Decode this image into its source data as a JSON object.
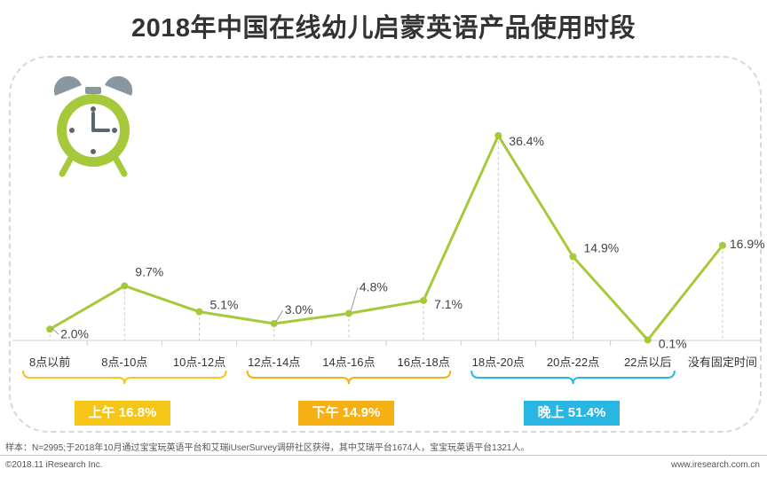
{
  "title": "2018年中国在线幼儿启蒙英语产品使用时段",
  "chart_data": {
    "type": "line",
    "categories": [
      "8点以前",
      "8点-10点",
      "10点-12点",
      "12点-14点",
      "14点-16点",
      "16点-18点",
      "18点-20点",
      "20点-22点",
      "22点以后",
      "没有固定时间"
    ],
    "values": [
      2.0,
      9.7,
      5.1,
      3.0,
      4.8,
      7.1,
      36.4,
      14.9,
      0.1,
      16.9
    ],
    "value_labels": [
      "2.0%",
      "9.7%",
      "5.1%",
      "3.0%",
      "4.8%",
      "7.1%",
      "36.4%",
      "14.9%",
      "0.1%",
      "16.9%"
    ],
    "line_color": "#a5c93a",
    "groups": [
      {
        "label": "上午 16.8%",
        "from": 0,
        "to": 2,
        "color": "#f5c518"
      },
      {
        "label": "下午 14.9%",
        "from": 3,
        "to": 5,
        "color": "#f5b014"
      },
      {
        "label": "晚上 51.4%",
        "from": 6,
        "to": 8,
        "color": "#29b6e3"
      }
    ]
  },
  "icon": "alarm-clock-icon",
  "footnote": "样本：N=2995;于2018年10月通过宝宝玩英语平台和艾瑞iUserSurvey调研社区获得，其中艾瑞平台1674人，宝宝玩英语平台1321人。",
  "copyright": "©2018.11 iResearch Inc.",
  "website": "www.iresearch.com.cn"
}
